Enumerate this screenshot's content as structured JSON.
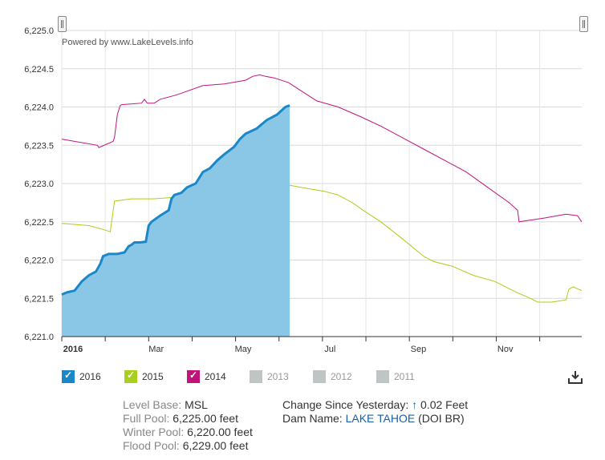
{
  "powered_by": "Powered by www.LakeLevels.info",
  "chart_data": {
    "type": "line",
    "ylim": [
      6221.0,
      6225.0
    ],
    "y_ticks": [
      "6,221.0",
      "6,221.5",
      "6,222.0",
      "6,222.5",
      "6,223.0",
      "6,223.5",
      "6,224.0",
      "6,224.5",
      "6,225.0"
    ],
    "y_tick_values": [
      6221.0,
      6221.5,
      6222.0,
      6222.5,
      6223.0,
      6223.5,
      6224.0,
      6224.5,
      6225.0
    ],
    "x_ticks": [
      "2016",
      "Mar",
      "May",
      "Jul",
      "Sep",
      "Nov"
    ],
    "x_tick_days": [
      1,
      60,
      121,
      182,
      244,
      305
    ],
    "xlim_days": [
      1,
      366
    ],
    "grid": true,
    "series": [
      {
        "name": "2014",
        "color": "#c0147b",
        "type": "line",
        "x": [
          1,
          26,
          27,
          37,
          38,
          40,
          42,
          43,
          57,
          59,
          61,
          66,
          70,
          80,
          85,
          100,
          115,
          130,
          135,
          140,
          144,
          150,
          160,
          170,
          180,
          195,
          210,
          225,
          240,
          255,
          270,
          285,
          300,
          315,
          321,
          322,
          340,
          355,
          363,
          366
        ],
        "y": [
          6223.58,
          6223.5,
          6223.47,
          6223.55,
          6223.6,
          6223.9,
          6224.02,
          6224.03,
          6224.05,
          6224.1,
          6224.05,
          6224.05,
          6224.1,
          6224.15,
          6224.18,
          6224.28,
          6224.3,
          6224.35,
          6224.4,
          6224.42,
          6224.4,
          6224.38,
          6224.32,
          6224.2,
          6224.08,
          6224.0,
          6223.88,
          6223.75,
          6223.6,
          6223.45,
          6223.3,
          6223.15,
          6222.95,
          6222.75,
          6222.65,
          6222.5,
          6222.55,
          6222.6,
          6222.58,
          6222.5
        ]
      },
      {
        "name": "2015",
        "color": "#a8cf1a",
        "type": "line",
        "x": [
          1,
          20,
          30,
          35,
          36,
          38,
          50,
          65,
          80,
          90,
          95,
          100,
          110,
          121,
          135,
          148,
          150,
          160,
          175,
          185,
          195,
          205,
          215,
          225,
          240,
          255,
          262,
          275,
          290,
          305,
          320,
          330,
          335,
          345,
          355,
          357,
          360,
          366
        ],
        "y": [
          6222.48,
          6222.45,
          6222.4,
          6222.37,
          6222.5,
          6222.77,
          6222.8,
          6222.8,
          6222.82,
          6222.8,
          6222.78,
          6222.75,
          6222.72,
          6222.85,
          6222.92,
          6222.94,
          6222.98,
          6222.98,
          6222.93,
          6222.9,
          6222.85,
          6222.75,
          6222.62,
          6222.5,
          6222.28,
          6222.05,
          6221.98,
          6221.92,
          6221.8,
          6221.72,
          6221.58,
          6221.5,
          6221.45,
          6221.45,
          6221.48,
          6221.62,
          6221.65,
          6221.6
        ]
      },
      {
        "name": "2016",
        "color": "#1a87c8",
        "fill": "#8ac6e6",
        "type": "area",
        "x": [
          1,
          5,
          10,
          15,
          20,
          25,
          28,
          30,
          34,
          40,
          45,
          48,
          50,
          52,
          56,
          60,
          62,
          64,
          70,
          76,
          78,
          80,
          85,
          89,
          95,
          100,
          105,
          110,
          115,
          122,
          126,
          130,
          138,
          143,
          145,
          152,
          158,
          161
        ],
        "y": [
          6221.55,
          6221.58,
          6221.6,
          6221.72,
          6221.8,
          6221.85,
          6221.95,
          6222.05,
          6222.08,
          6222.08,
          6222.1,
          6222.18,
          6222.2,
          6222.23,
          6222.23,
          6222.24,
          6222.45,
          6222.5,
          6222.58,
          6222.65,
          6222.8,
          6222.85,
          6222.88,
          6222.95,
          6223.0,
          6223.15,
          6223.2,
          6223.3,
          6223.38,
          6223.48,
          6223.58,
          6223.65,
          6223.72,
          6223.8,
          6223.83,
          6223.9,
          6224.0,
          6224.02
        ]
      }
    ]
  },
  "legend": [
    {
      "label": "2016",
      "color": "#1a87c8",
      "checked": true
    },
    {
      "label": "2015",
      "color": "#a8cf1a",
      "checked": true
    },
    {
      "label": "2014",
      "color": "#c0147b",
      "checked": true
    },
    {
      "label": "2013",
      "color": "#bfc4c5",
      "checked": false
    },
    {
      "label": "2012",
      "color": "#bfc4c5",
      "checked": false
    },
    {
      "label": "2011",
      "color": "#bfc4c5",
      "checked": false
    }
  ],
  "info": {
    "level_base_label": "Level Base:",
    "level_base_value": "MSL",
    "full_pool_label": "Full Pool:",
    "full_pool_value": "6,225.00 feet",
    "winter_pool_label": "Winter Pool:",
    "winter_pool_value": "6,220.00 feet",
    "flood_pool_label": "Flood Pool:",
    "flood_pool_value": "6,229.00 feet",
    "change_label": "Change Since Yesterday:",
    "change_arrow": "↑",
    "change_value": "0.02 Feet",
    "dam_label": "Dam Name:",
    "dam_value": "LAKE TAHOE",
    "dam_suffix": "(DOI BR)"
  },
  "icons": {
    "download": "download-icon",
    "range_handle": "range-handle-icon"
  }
}
